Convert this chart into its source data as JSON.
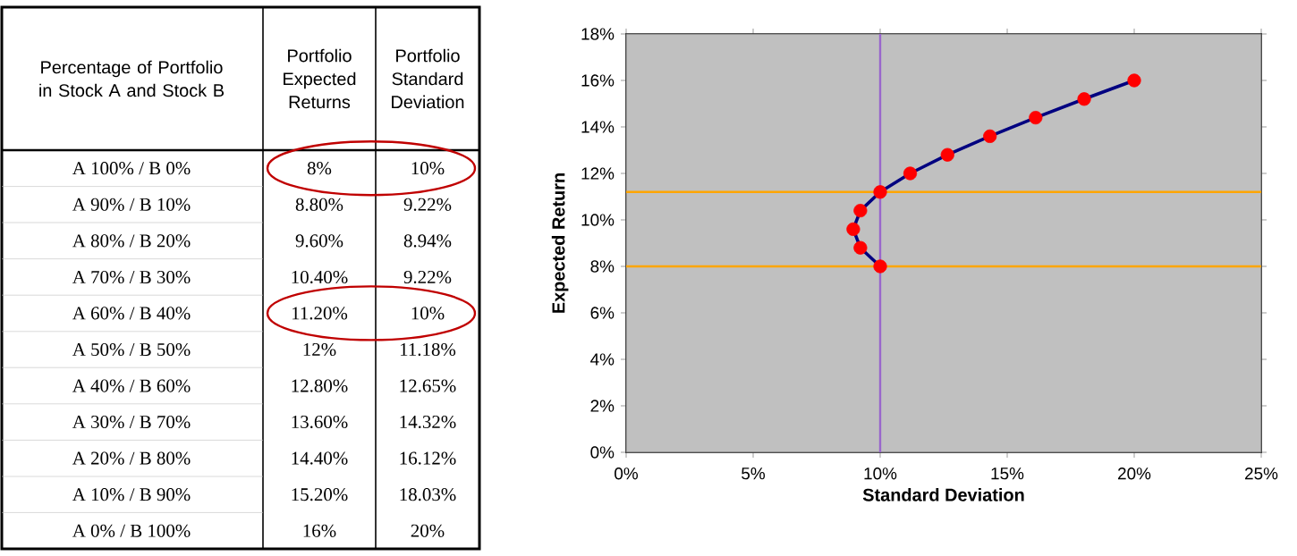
{
  "chart_data": {
    "type": "line",
    "xlabel": "Standard Deviation",
    "ylabel": "Expected Return",
    "xlim": [
      0,
      25
    ],
    "xticks": [
      {
        "value": 0,
        "label": "0%"
      },
      {
        "value": 5,
        "label": "5%"
      },
      {
        "value": 10,
        "label": "10%"
      },
      {
        "value": 15,
        "label": "15%"
      },
      {
        "value": 20,
        "label": "20%"
      },
      {
        "value": 25,
        "label": "25%"
      }
    ],
    "ylim": [
      0,
      18
    ],
    "yticks": [
      {
        "value": 0,
        "label": "0%"
      },
      {
        "value": 2,
        "label": "2%"
      },
      {
        "value": 4,
        "label": "4%"
      },
      {
        "value": 6,
        "label": "6%"
      },
      {
        "value": 8,
        "label": "8%"
      },
      {
        "value": 10,
        "label": "10%"
      },
      {
        "value": 12,
        "label": "12%"
      },
      {
        "value": 14,
        "label": "14%"
      },
      {
        "value": 16,
        "label": "16%"
      },
      {
        "value": 18,
        "label": "18%"
      }
    ],
    "marker": "circle",
    "series": [
      {
        "color": "#000080",
        "colors": [
          "#ff0000",
          "#ff0000",
          "#ff0000",
          "#ff0000",
          "#ff0000",
          "#ff0000",
          "#ff0000",
          "#ff0000",
          "#ff0000",
          "#ff0000",
          "#ff0000"
        ],
        "x": [
          10,
          9.22,
          8.94,
          9.22,
          10,
          11.18,
          12.65,
          14.32,
          16.12,
          18.03,
          20
        ],
        "values": [
          8,
          8.8,
          9.6,
          10.4,
          11.2,
          12,
          12.8,
          13.6,
          14.4,
          15.2,
          16
        ]
      }
    ],
    "ref_lines": [
      {
        "axis": "x",
        "value": 10,
        "color": "#9966cc"
      },
      {
        "axis": "y",
        "value": 8,
        "color": "#ffa500"
      },
      {
        "axis": "y",
        "value": 11.2,
        "color": "#ffa500"
      }
    ],
    "annotations": [
      "Percentage of Portfolio in Stock A and Stock B",
      "Portfolio Expected Returns",
      "Portfolio Standard Deviation",
      "A 100% / B 0%",
      "8%",
      "10%",
      "A 90% / B 10%",
      "8.80%",
      "9.22%",
      "A 80% / B 20%",
      "9.60%",
      "8.94%",
      "A 70% / B 30%",
      "10.40%",
      "9.22%",
      "A 60% / B 40%",
      "11.20%",
      "10%",
      "A 50% / B 50%",
      "12%",
      "11.18%",
      "A 40% / B 60%",
      "12.80%",
      "12.65%",
      "A 30% / B 70%",
      "13.60%",
      "14.32%",
      "A 20% / B 80%",
      "14.40%",
      "16.12%",
      "A 10% / B 90%",
      "15.20%",
      "18.03%",
      "A 0% / B 100%",
      "16%",
      "20%"
    ]
  }
}
